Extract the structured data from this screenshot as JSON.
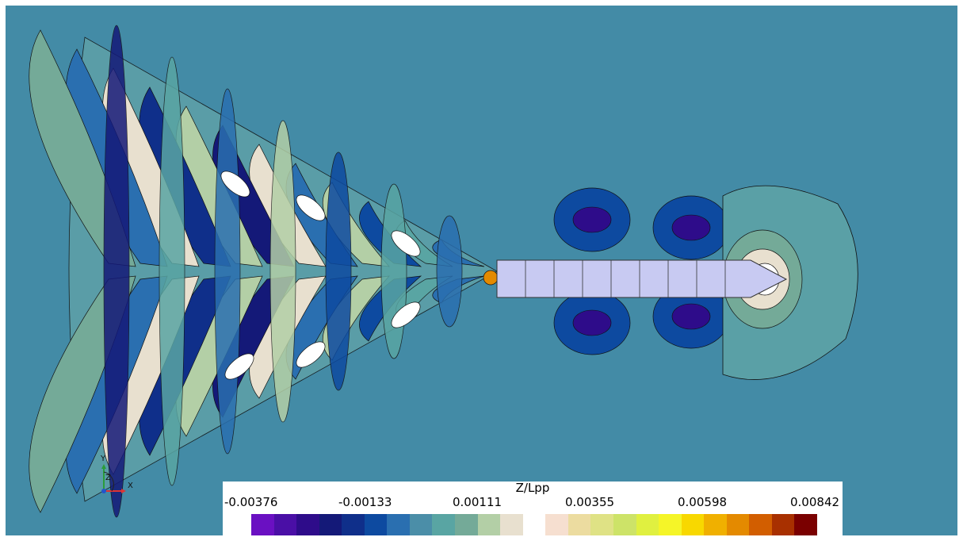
{
  "legend": {
    "title": "Z/Lpp",
    "ticks": [
      "-0.00376",
      "-0.00133",
      "0.00111",
      "0.00355",
      "0.00598",
      "0.00842"
    ],
    "colors": [
      "#6a10c2",
      "#4a0fa6",
      "#2e0c8a",
      "#141978",
      "#0f2f8a",
      "#0d4aa0",
      "#2a6fb0",
      "#4b8ea8",
      "#59a5a3",
      "#74aa98",
      "#b3cfa6",
      "#e8e0cf",
      "#ffffff",
      "#f6dfd0",
      "#ecdca0",
      "#dfe285",
      "#cde368",
      "#e0f040",
      "#f5f528",
      "#f8d800",
      "#f0b000",
      "#e48a00",
      "#d25e00",
      "#a83000",
      "#7a0000"
    ]
  },
  "axes": {
    "x": "X",
    "y": "Y",
    "z": "Z"
  },
  "colors": {
    "background": "#438ba6",
    "hull": "#c8caf2",
    "contour_line": "#111111"
  }
}
